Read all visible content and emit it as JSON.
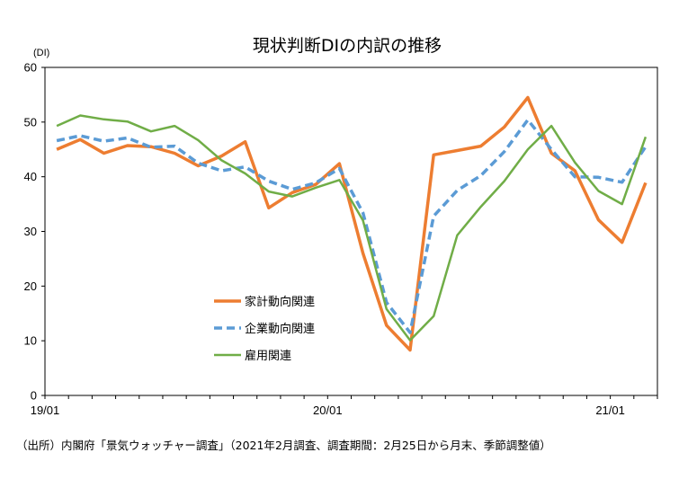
{
  "source": "（出所）内閣府「景気ウォッチャー調査」（2021年2月調査、調査期間：2月25日から月末、季節調整値）",
  "chart_data": {
    "type": "line",
    "title": "現状判断DIの内訳の推移",
    "ylabel": "(DI)",
    "xlabel": "",
    "ylim": [
      0,
      60
    ],
    "yticks": [
      0,
      10,
      20,
      30,
      40,
      50,
      60
    ],
    "x": [
      "2019-01",
      "2019-02",
      "2019-03",
      "2019-04",
      "2019-05",
      "2019-06",
      "2019-07",
      "2019-08",
      "2019-09",
      "2019-10",
      "2019-11",
      "2019-12",
      "2020-01",
      "2020-02",
      "2020-03",
      "2020-04",
      "2020-05",
      "2020-06",
      "2020-07",
      "2020-08",
      "2020-09",
      "2020-10",
      "2020-11",
      "2020-12",
      "2021-01",
      "2021-02"
    ],
    "xtick_labels": [
      {
        "index": 0,
        "label": "19/01"
      },
      {
        "index": 12,
        "label": "20/01"
      },
      {
        "index": 24,
        "label": "21/01"
      }
    ],
    "grid": false,
    "legend_position": "center-left inside plot",
    "series": [
      {
        "name": "家計動向関連",
        "color": "#ED7D31",
        "style": "solid",
        "values": [
          45.0,
          46.8,
          44.3,
          45.7,
          45.5,
          44.3,
          42.0,
          43.8,
          46.4,
          34.3,
          37.1,
          38.6,
          42.4,
          26.0,
          12.8,
          8.3,
          44.0,
          44.8,
          45.6,
          49.1,
          54.5,
          44.3,
          41.1,
          32.1,
          28.0,
          38.9
        ]
      },
      {
        "name": "企業動向関連",
        "color": "#5B9BD5",
        "style": "dashed",
        "values": [
          46.6,
          47.5,
          46.5,
          47.1,
          45.4,
          45.6,
          42.5,
          41.1,
          41.8,
          39.2,
          37.7,
          38.9,
          41.5,
          33.4,
          17.0,
          11.5,
          32.8,
          37.5,
          40.2,
          44.6,
          50.4,
          45.0,
          40.0,
          39.9,
          39.0,
          45.5
        ]
      },
      {
        "name": "雇用関連",
        "color": "#70AD47",
        "style": "solid",
        "values": [
          49.3,
          51.2,
          50.5,
          50.1,
          48.3,
          49.3,
          46.7,
          43.0,
          40.6,
          37.3,
          36.4,
          38.0,
          39.4,
          32.0,
          15.8,
          10.1,
          14.5,
          29.3,
          34.5,
          39.2,
          45.0,
          49.3,
          42.6,
          37.4,
          35.0,
          47.3
        ]
      }
    ]
  }
}
